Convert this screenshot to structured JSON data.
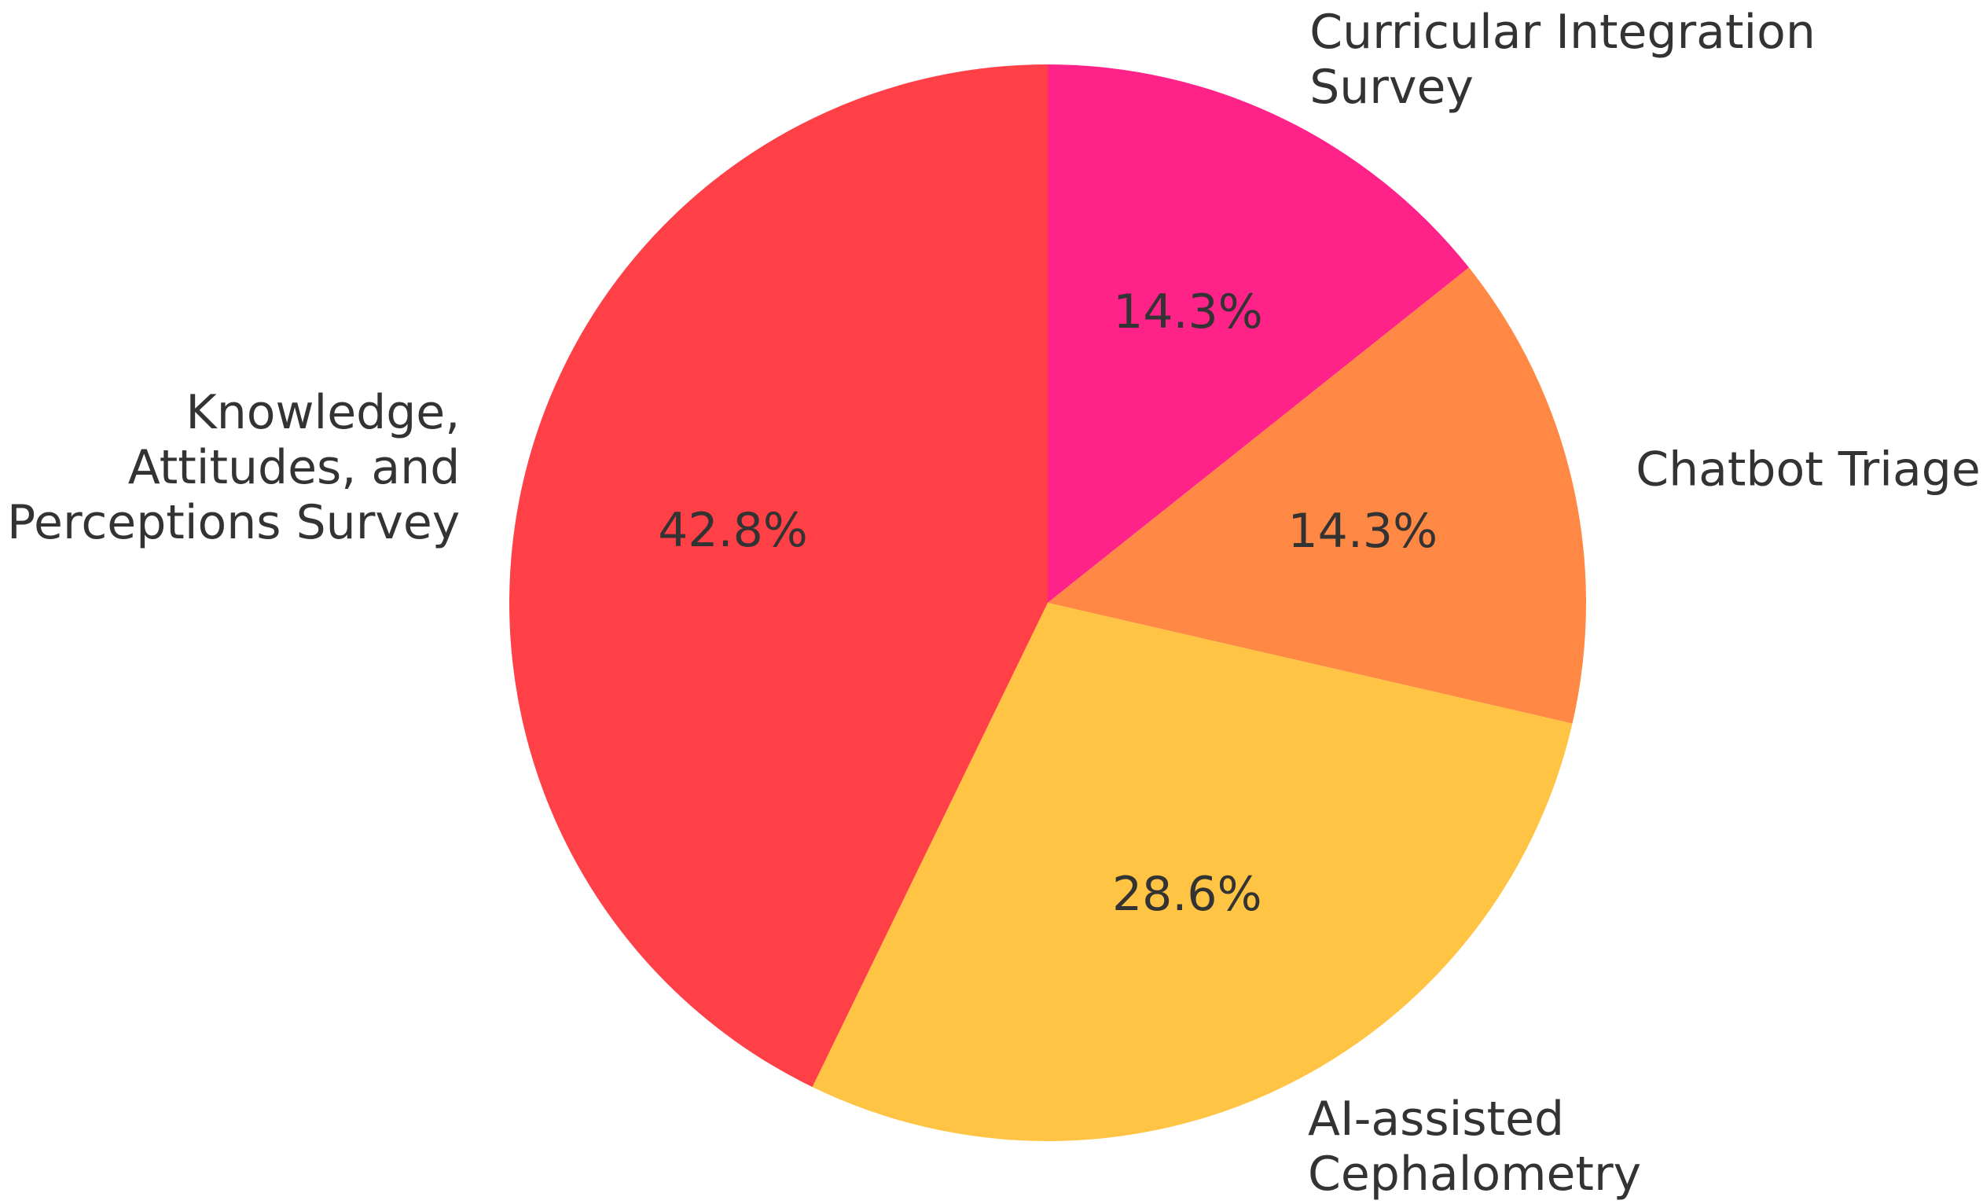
{
  "chart_data": {
    "type": "pie",
    "title": "",
    "start_angle_deg": 90,
    "direction": "clockwise",
    "legend": "none",
    "slices": [
      {
        "label": [
          "Curricular Integration",
          "Survey"
        ],
        "value": 14.3,
        "pct_label": "14.3%",
        "color": "#FF2288"
      },
      {
        "label": [
          "Chatbot Triage"
        ],
        "value": 14.3,
        "pct_label": "14.3%",
        "color": "#FF8844"
      },
      {
        "label": [
          "AI-assisted",
          "Cephalometry"
        ],
        "value": 28.6,
        "pct_label": "28.6%",
        "color": "#FFC444"
      },
      {
        "label": [
          "Knowledge,",
          "Attitudes, and",
          "Perceptions Survey"
        ],
        "value": 42.8,
        "pct_label": "42.8%",
        "color": "#FF4046"
      }
    ]
  }
}
